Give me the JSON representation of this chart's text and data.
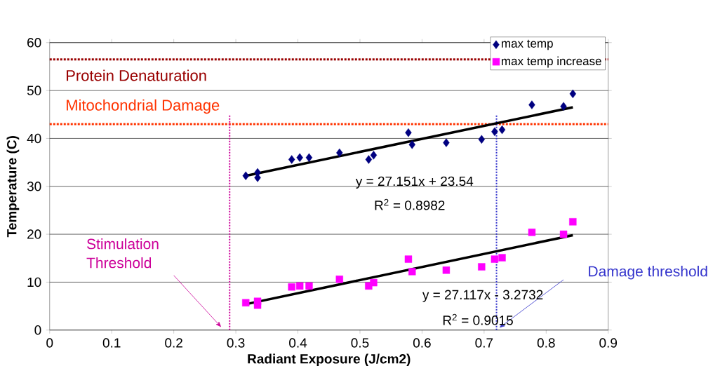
{
  "chart_data": {
    "type": "scatter",
    "xlabel": "Radiant Exposure (J/cm2)",
    "ylabel": "Temperature (C)",
    "xlim": [
      0,
      0.9
    ],
    "ylim": [
      0,
      60
    ],
    "xticks": [
      0,
      0.1,
      0.2,
      0.3,
      0.4,
      0.5,
      0.6,
      0.7,
      0.8,
      0.9
    ],
    "yticks": [
      0,
      10,
      20,
      30,
      40,
      50,
      60
    ],
    "grid": "y",
    "legend": "top right",
    "series": [
      {
        "name": "max temp",
        "marker": "diamond",
        "color": "#000080",
        "x": [
          0.316,
          0.335,
          0.335,
          0.39,
          0.403,
          0.418,
          0.467,
          0.514,
          0.522,
          0.578,
          0.584,
          0.639,
          0.696,
          0.717,
          0.729,
          0.777,
          0.828,
          0.843
        ],
        "values": [
          32.2,
          32.9,
          31.8,
          35.6,
          36.0,
          36.0,
          37.0,
          35.6,
          36.5,
          41.2,
          38.7,
          39.1,
          39.8,
          41.4,
          41.8,
          47.0,
          46.7,
          49.3
        ]
      },
      {
        "name": "max temp increase",
        "marker": "square",
        "color": "#ff00ff",
        "x": [
          0.316,
          0.335,
          0.335,
          0.39,
          0.403,
          0.418,
          0.467,
          0.514,
          0.522,
          0.578,
          0.584,
          0.639,
          0.696,
          0.717,
          0.729,
          0.777,
          0.828,
          0.843
        ],
        "values": [
          5.7,
          6.0,
          5.2,
          9.0,
          9.2,
          9.2,
          10.6,
          9.2,
          9.9,
          14.8,
          12.2,
          12.5,
          13.2,
          14.8,
          15.1,
          20.4,
          20.0,
          22.6
        ]
      },
      {
        "type": "line",
        "marker": "none",
        "color": "#000000",
        "x": [
          0.316,
          0.843
        ],
        "values": [
          32.2,
          46.5
        ]
      },
      {
        "type": "line",
        "marker": "none",
        "color": "#000000",
        "x": [
          0.316,
          0.843
        ],
        "values": [
          5.4,
          19.8
        ]
      }
    ],
    "ref_lines": [
      {
        "axis": "y",
        "value": 56.5,
        "label": "Protein Denaturation",
        "color": "#990000",
        "line_style": "dotted"
      },
      {
        "axis": "y",
        "value": 43,
        "label": "Mitochondrial Damage",
        "color": "#ff3300",
        "line_style": "dotted"
      },
      {
        "axis": "x",
        "value": 0.29,
        "label": "Stimulation Threshold",
        "color": "#cc0099",
        "line_style": "dotted"
      },
      {
        "axis": "x",
        "value": 0.72,
        "label": "Damage threshold",
        "color": "#3333cc",
        "line_style": "dotted"
      }
    ],
    "annotations": [
      "y = 27.151x + 23.54",
      "R$^{2}$ = 0.8982",
      "y = 27.117x - 3.2732",
      "R$^{2}$ = 0.9015"
    ]
  }
}
